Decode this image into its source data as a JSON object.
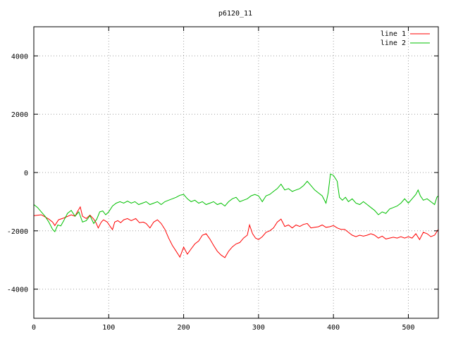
{
  "chart_data": {
    "type": "line",
    "title": "p6120_11",
    "xlabel": "",
    "ylabel": "",
    "xlim": [
      0,
      540
    ],
    "ylim": [
      -5000,
      5000
    ],
    "xticks": [
      0,
      100,
      200,
      300,
      400,
      500
    ],
    "yticks": [
      -4000,
      -2000,
      0,
      2000,
      4000
    ],
    "grid": true,
    "legend_position": "top-right",
    "series": [
      {
        "name": "line 1",
        "color": "#ff0000",
        "points": [
          [
            0,
            -1480
          ],
          [
            10,
            -1450
          ],
          [
            20,
            -1600
          ],
          [
            25,
            -1700
          ],
          [
            28,
            -1820
          ],
          [
            33,
            -1620
          ],
          [
            40,
            -1560
          ],
          [
            50,
            -1450
          ],
          [
            55,
            -1500
          ],
          [
            58,
            -1350
          ],
          [
            62,
            -1180
          ],
          [
            65,
            -1500
          ],
          [
            70,
            -1580
          ],
          [
            75,
            -1460
          ],
          [
            80,
            -1600
          ],
          [
            83,
            -1720
          ],
          [
            86,
            -1900
          ],
          [
            90,
            -1700
          ],
          [
            93,
            -1620
          ],
          [
            98,
            -1700
          ],
          [
            102,
            -1850
          ],
          [
            105,
            -1960
          ],
          [
            108,
            -1700
          ],
          [
            112,
            -1650
          ],
          [
            116,
            -1720
          ],
          [
            120,
            -1620
          ],
          [
            125,
            -1580
          ],
          [
            130,
            -1650
          ],
          [
            136,
            -1580
          ],
          [
            141,
            -1720
          ],
          [
            146,
            -1700
          ],
          [
            150,
            -1750
          ],
          [
            155,
            -1900
          ],
          [
            160,
            -1700
          ],
          [
            165,
            -1620
          ],
          [
            170,
            -1750
          ],
          [
            175,
            -1950
          ],
          [
            180,
            -2250
          ],
          [
            185,
            -2500
          ],
          [
            190,
            -2700
          ],
          [
            195,
            -2900
          ],
          [
            200,
            -2560
          ],
          [
            205,
            -2800
          ],
          [
            210,
            -2620
          ],
          [
            215,
            -2450
          ],
          [
            220,
            -2350
          ],
          [
            225,
            -2150
          ],
          [
            230,
            -2100
          ],
          [
            235,
            -2280
          ],
          [
            240,
            -2500
          ],
          [
            245,
            -2700
          ],
          [
            250,
            -2830
          ],
          [
            255,
            -2920
          ],
          [
            260,
            -2700
          ],
          [
            265,
            -2550
          ],
          [
            270,
            -2450
          ],
          [
            275,
            -2400
          ],
          [
            280,
            -2250
          ],
          [
            285,
            -2150
          ],
          [
            288,
            -1800
          ],
          [
            292,
            -2100
          ],
          [
            296,
            -2250
          ],
          [
            300,
            -2300
          ],
          [
            305,
            -2200
          ],
          [
            310,
            -2050
          ],
          [
            315,
            -2000
          ],
          [
            320,
            -1900
          ],
          [
            325,
            -1700
          ],
          [
            330,
            -1600
          ],
          [
            335,
            -1850
          ],
          [
            340,
            -1800
          ],
          [
            345,
            -1900
          ],
          [
            350,
            -1800
          ],
          [
            355,
            -1850
          ],
          [
            360,
            -1780
          ],
          [
            365,
            -1750
          ],
          [
            370,
            -1900
          ],
          [
            375,
            -1880
          ],
          [
            380,
            -1860
          ],
          [
            385,
            -1800
          ],
          [
            390,
            -1880
          ],
          [
            395,
            -1860
          ],
          [
            400,
            -1820
          ],
          [
            405,
            -1900
          ],
          [
            410,
            -1950
          ],
          [
            415,
            -1950
          ],
          [
            420,
            -2050
          ],
          [
            425,
            -2150
          ],
          [
            430,
            -2200
          ],
          [
            435,
            -2150
          ],
          [
            440,
            -2180
          ],
          [
            445,
            -2150
          ],
          [
            450,
            -2100
          ],
          [
            455,
            -2150
          ],
          [
            460,
            -2250
          ],
          [
            465,
            -2180
          ],
          [
            470,
            -2280
          ],
          [
            475,
            -2250
          ],
          [
            480,
            -2220
          ],
          [
            485,
            -2250
          ],
          [
            490,
            -2200
          ],
          [
            495,
            -2250
          ],
          [
            500,
            -2200
          ],
          [
            505,
            -2250
          ],
          [
            510,
            -2100
          ],
          [
            515,
            -2300
          ],
          [
            520,
            -2050
          ],
          [
            525,
            -2100
          ],
          [
            530,
            -2200
          ],
          [
            535,
            -2150
          ],
          [
            540,
            -1950
          ]
        ]
      },
      {
        "name": "line 2",
        "color": "#00c000",
        "points": [
          [
            0,
            -1100
          ],
          [
            5,
            -1200
          ],
          [
            10,
            -1350
          ],
          [
            15,
            -1500
          ],
          [
            20,
            -1700
          ],
          [
            25,
            -1950
          ],
          [
            28,
            -2030
          ],
          [
            32,
            -1800
          ],
          [
            36,
            -1830
          ],
          [
            40,
            -1650
          ],
          [
            45,
            -1400
          ],
          [
            50,
            -1300
          ],
          [
            55,
            -1500
          ],
          [
            60,
            -1350
          ],
          [
            65,
            -1700
          ],
          [
            70,
            -1650
          ],
          [
            75,
            -1480
          ],
          [
            80,
            -1750
          ],
          [
            84,
            -1600
          ],
          [
            88,
            -1350
          ],
          [
            92,
            -1320
          ],
          [
            96,
            -1450
          ],
          [
            100,
            -1350
          ],
          [
            105,
            -1150
          ],
          [
            110,
            -1050
          ],
          [
            115,
            -1000
          ],
          [
            120,
            -1050
          ],
          [
            125,
            -980
          ],
          [
            130,
            -1050
          ],
          [
            135,
            -1000
          ],
          [
            140,
            -1100
          ],
          [
            145,
            -1050
          ],
          [
            150,
            -1000
          ],
          [
            155,
            -1100
          ],
          [
            160,
            -1050
          ],
          [
            165,
            -1000
          ],
          [
            170,
            -1100
          ],
          [
            175,
            -1000
          ],
          [
            180,
            -950
          ],
          [
            185,
            -900
          ],
          [
            190,
            -850
          ],
          [
            195,
            -780
          ],
          [
            200,
            -750
          ],
          [
            205,
            -900
          ],
          [
            210,
            -1000
          ],
          [
            215,
            -950
          ],
          [
            220,
            -1050
          ],
          [
            225,
            -1000
          ],
          [
            230,
            -1100
          ],
          [
            235,
            -1050
          ],
          [
            240,
            -1000
          ],
          [
            245,
            -1100
          ],
          [
            250,
            -1050
          ],
          [
            255,
            -1150
          ],
          [
            260,
            -1000
          ],
          [
            265,
            -900
          ],
          [
            270,
            -850
          ],
          [
            275,
            -1000
          ],
          [
            280,
            -950
          ],
          [
            285,
            -900
          ],
          [
            290,
            -800
          ],
          [
            295,
            -750
          ],
          [
            300,
            -800
          ],
          [
            305,
            -1000
          ],
          [
            310,
            -800
          ],
          [
            315,
            -750
          ],
          [
            320,
            -650
          ],
          [
            325,
            -550
          ],
          [
            330,
            -400
          ],
          [
            335,
            -600
          ],
          [
            340,
            -550
          ],
          [
            345,
            -650
          ],
          [
            350,
            -600
          ],
          [
            355,
            -550
          ],
          [
            360,
            -450
          ],
          [
            365,
            -300
          ],
          [
            370,
            -450
          ],
          [
            375,
            -600
          ],
          [
            380,
            -700
          ],
          [
            385,
            -800
          ],
          [
            390,
            -1050
          ],
          [
            393,
            -700
          ],
          [
            396,
            -50
          ],
          [
            400,
            -100
          ],
          [
            405,
            -300
          ],
          [
            408,
            -850
          ],
          [
            412,
            -950
          ],
          [
            416,
            -850
          ],
          [
            420,
            -1000
          ],
          [
            425,
            -900
          ],
          [
            430,
            -1050
          ],
          [
            435,
            -1100
          ],
          [
            440,
            -1000
          ],
          [
            445,
            -1100
          ],
          [
            450,
            -1200
          ],
          [
            455,
            -1300
          ],
          [
            460,
            -1450
          ],
          [
            465,
            -1350
          ],
          [
            470,
            -1400
          ],
          [
            475,
            -1250
          ],
          [
            480,
            -1200
          ],
          [
            485,
            -1150
          ],
          [
            490,
            -1050
          ],
          [
            495,
            -900
          ],
          [
            500,
            -1050
          ],
          [
            505,
            -900
          ],
          [
            510,
            -750
          ],
          [
            513,
            -600
          ],
          [
            516,
            -800
          ],
          [
            520,
            -950
          ],
          [
            525,
            -900
          ],
          [
            530,
            -1000
          ],
          [
            535,
            -1100
          ],
          [
            538,
            -850
          ],
          [
            540,
            -800
          ]
        ]
      }
    ]
  }
}
